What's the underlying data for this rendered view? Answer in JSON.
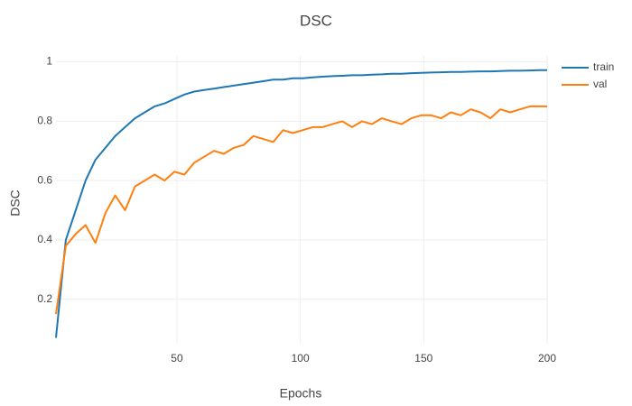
{
  "chart_data": {
    "type": "line",
    "title": "DSC",
    "x_label": "Epochs",
    "y_label": "DSC",
    "x": [
      1,
      5,
      9,
      13,
      17,
      21,
      25,
      29,
      33,
      37,
      41,
      45,
      49,
      53,
      57,
      61,
      65,
      69,
      73,
      77,
      81,
      85,
      89,
      93,
      97,
      101,
      105,
      109,
      113,
      117,
      121,
      125,
      129,
      133,
      137,
      141,
      145,
      149,
      153,
      157,
      161,
      165,
      169,
      173,
      177,
      181,
      185,
      189,
      193,
      197,
      200
    ],
    "series": [
      {
        "name": "train",
        "color": "#1f77b4",
        "values": [
          0.07,
          0.4,
          0.5,
          0.6,
          0.67,
          0.71,
          0.75,
          0.78,
          0.81,
          0.83,
          0.85,
          0.86,
          0.875,
          0.89,
          0.9,
          0.905,
          0.91,
          0.915,
          0.92,
          0.925,
          0.93,
          0.935,
          0.94,
          0.94,
          0.945,
          0.945,
          0.948,
          0.95,
          0.952,
          0.953,
          0.955,
          0.955,
          0.957,
          0.958,
          0.96,
          0.96,
          0.962,
          0.963,
          0.964,
          0.965,
          0.966,
          0.966,
          0.967,
          0.968,
          0.968,
          0.969,
          0.97,
          0.97,
          0.971,
          0.972,
          0.972
        ]
      },
      {
        "name": "val",
        "color": "#ff7f0e",
        "values": [
          0.15,
          0.38,
          0.42,
          0.45,
          0.39,
          0.49,
          0.55,
          0.5,
          0.58,
          0.6,
          0.62,
          0.6,
          0.63,
          0.62,
          0.66,
          0.68,
          0.7,
          0.69,
          0.71,
          0.72,
          0.75,
          0.74,
          0.73,
          0.77,
          0.76,
          0.77,
          0.78,
          0.78,
          0.79,
          0.8,
          0.78,
          0.8,
          0.79,
          0.81,
          0.8,
          0.79,
          0.81,
          0.82,
          0.82,
          0.81,
          0.83,
          0.82,
          0.84,
          0.83,
          0.81,
          0.84,
          0.83,
          0.84,
          0.85,
          0.85,
          0.85
        ]
      }
    ],
    "xlim": [
      1,
      200
    ],
    "xticks": [
      50,
      100,
      150,
      200
    ],
    "ylim": [
      0.05,
      1.02
    ],
    "yticks": [
      0.2,
      0.4,
      0.6,
      0.8,
      1
    ],
    "grid": true,
    "legend": "top-right"
  }
}
